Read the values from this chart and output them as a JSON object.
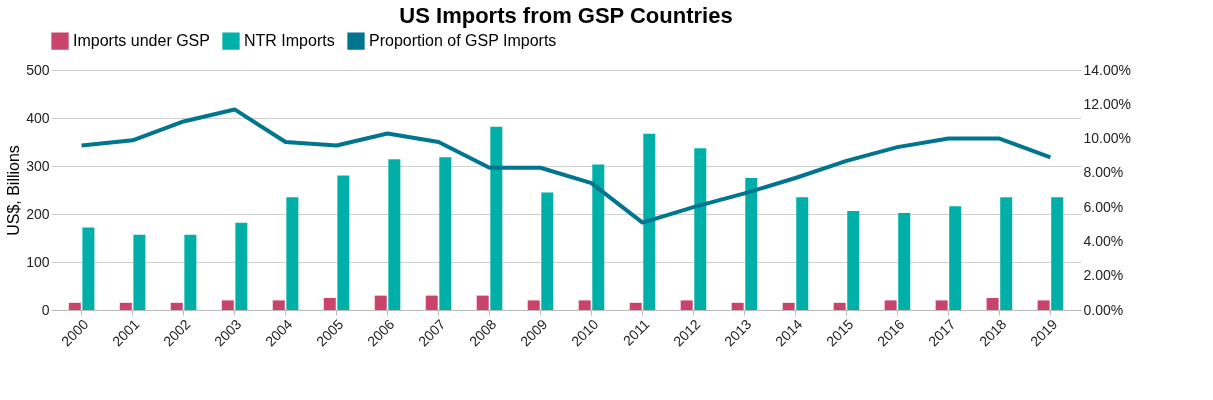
{
  "chart_data": {
    "type": "bar",
    "title": "US Imports from GSP Countries",
    "ylabel": "US$, Billions",
    "categories": [
      "2000",
      "2001",
      "2002",
      "2003",
      "2004",
      "2005",
      "2006",
      "2007",
      "2008",
      "2009",
      "2010",
      "2011",
      "2012",
      "2013",
      "2014",
      "2015",
      "2016",
      "2017",
      "2018",
      "2019"
    ],
    "series": [
      {
        "name": "Imports under GSP",
        "color": "#c8446a",
        "values": [
          15,
          15,
          15,
          20,
          20,
          25,
          30,
          30,
          30,
          20,
          20,
          15,
          20,
          15,
          15,
          15,
          20,
          20,
          25,
          20
        ]
      },
      {
        "name": "NTR Imports",
        "color": "#00b0a8",
        "values": [
          172,
          157,
          157,
          182,
          235,
          280,
          314,
          318,
          382,
          245,
          303,
          367,
          337,
          275,
          235,
          206,
          202,
          216,
          235,
          235
        ]
      },
      {
        "name": "Proportion of GSP Imports",
        "type": "line",
        "axis": "y2",
        "color": "#00758f",
        "values": [
          9.6,
          9.9,
          11.0,
          11.7,
          9.8,
          9.6,
          10.3,
          9.8,
          8.3,
          8.3,
          7.4,
          5.1,
          6.0,
          6.8,
          7.7,
          8.7,
          9.5,
          10.0,
          10.0,
          8.9
        ]
      }
    ],
    "ylim": [
      0,
      500
    ],
    "yticks": [
      0,
      100,
      200,
      300,
      400,
      500
    ],
    "y2lim": [
      0,
      14
    ],
    "y2ticks": [
      {
        "value": 0,
        "label": "0.00%"
      },
      {
        "value": 2,
        "label": "2.00%"
      },
      {
        "value": 4,
        "label": "4.00%"
      },
      {
        "value": 6,
        "label": "6.00%"
      },
      {
        "value": 8,
        "label": "8.00%"
      },
      {
        "value": 10,
        "label": "10.00%"
      },
      {
        "value": 12,
        "label": "12.00%"
      },
      {
        "value": 14,
        "label": "14.00%"
      }
    ],
    "grid": "y",
    "legend": "top",
    "marker": "none",
    "line_style": "solid"
  }
}
